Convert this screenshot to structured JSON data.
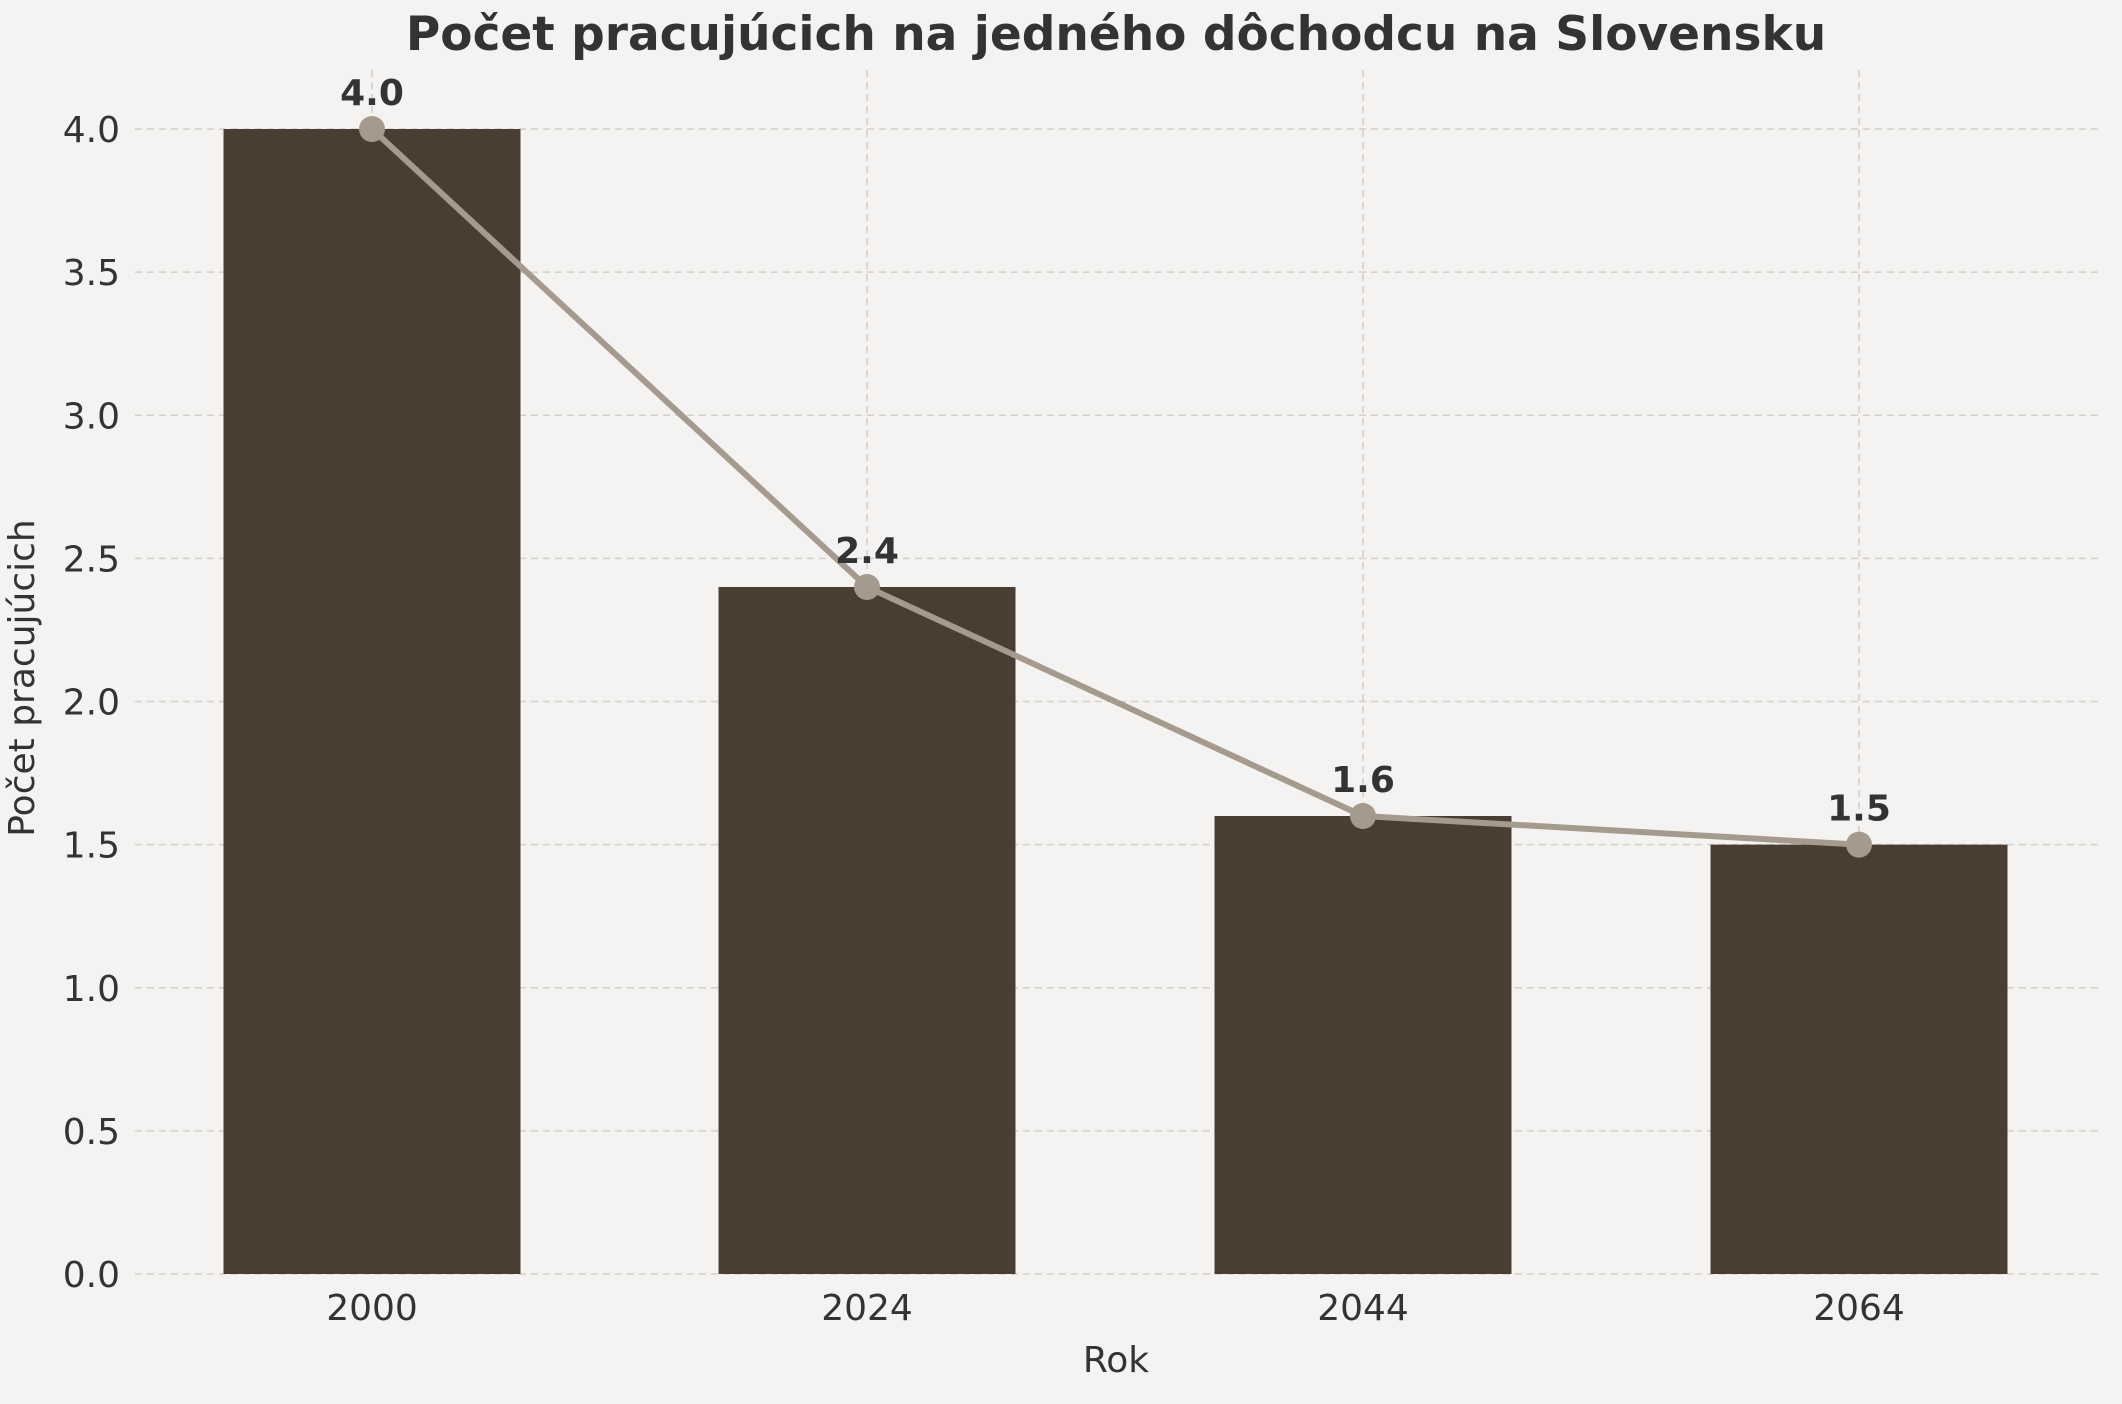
{
  "chart_data": {
    "type": "bar",
    "title": "Počet pracujúcich na jedného dôchodcu na Slovensku",
    "xlabel": "Rok",
    "ylabel": "Počet pracujúcich",
    "categories": [
      "2000",
      "2024",
      "2044",
      "2064"
    ],
    "values": [
      4.0,
      2.4,
      1.6,
      1.5
    ],
    "data_labels": [
      "4.0",
      "2.4",
      "1.6",
      "1.5"
    ],
    "overlay": {
      "type": "line",
      "markers": true,
      "values": [
        4.0,
        2.4,
        1.6,
        1.5
      ]
    },
    "ylim": [
      0,
      4.0
    ],
    "yticks": [
      "0.0",
      "0.5",
      "1.0",
      "1.5",
      "2.0",
      "2.5",
      "3.0",
      "3.5",
      "4.0"
    ],
    "grid": true,
    "legend": null
  },
  "colors": {
    "background": "#f4f3f1",
    "bar": "#4a3e33",
    "line": "#a59a8e",
    "text": "#333333",
    "grid": "#d2d0cc"
  }
}
